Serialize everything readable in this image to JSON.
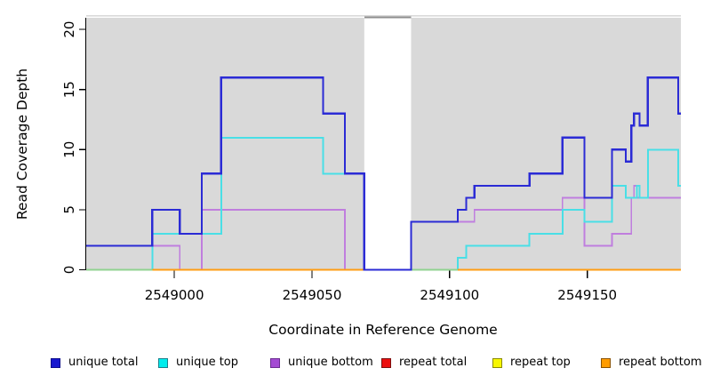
{
  "chart_data": {
    "type": "line",
    "style": "step",
    "title": "",
    "xlabel": "Coordinate in Reference Genome",
    "ylabel": "Read Coverage Depth",
    "xlim": [
      2548968,
      2549184
    ],
    "ylim": [
      0,
      20.9
    ],
    "x_ticks": [
      2549000,
      2549050,
      2549100,
      2549150
    ],
    "y_ticks": [
      0,
      5,
      10,
      15,
      20
    ],
    "grid": false,
    "plot_bg_color": "#d9d9d9",
    "mask_region": {
      "start": 2549069,
      "end": 2549086,
      "fill": "#ffffff",
      "top_border_color": "#8f8f8f"
    },
    "legend_position": "bottom",
    "series": [
      {
        "name": "unique total",
        "color": "#2b2bd5",
        "swatch_fill": "#1717cf",
        "swatch_border": "#0d0d8c",
        "steps": [
          [
            2548968,
            2
          ],
          [
            2548992,
            5
          ],
          [
            2549002,
            3
          ],
          [
            2549010,
            8
          ],
          [
            2549017,
            16
          ],
          [
            2549054,
            13
          ],
          [
            2549062,
            8
          ],
          [
            2549069,
            0
          ],
          [
            2549086,
            4
          ],
          [
            2549103,
            5
          ],
          [
            2549106,
            6
          ],
          [
            2549109,
            7
          ],
          [
            2549129,
            8
          ],
          [
            2549141,
            11
          ],
          [
            2549149,
            6
          ],
          [
            2549159,
            10
          ],
          [
            2549164,
            9
          ],
          [
            2549166,
            12
          ],
          [
            2549167,
            13
          ],
          [
            2549169,
            12
          ],
          [
            2549172,
            16
          ],
          [
            2549183,
            13
          ]
        ]
      },
      {
        "name": "unique top",
        "color": "#49dfe6",
        "swatch_fill": "#00eded",
        "swatch_border": "#19808c",
        "steps": [
          [
            2548968,
            0
          ],
          [
            2548992,
            3
          ],
          [
            2549017,
            11
          ],
          [
            2549054,
            8
          ],
          [
            2549069,
            0
          ],
          [
            2549103,
            1
          ],
          [
            2549106,
            2
          ],
          [
            2549129,
            3
          ],
          [
            2549141,
            5
          ],
          [
            2549149,
            4
          ],
          [
            2549159,
            7
          ],
          [
            2549164,
            6
          ],
          [
            2549168,
            7
          ],
          [
            2549169,
            6
          ],
          [
            2549172,
            10
          ],
          [
            2549183,
            7
          ]
        ]
      },
      {
        "name": "unique bottom",
        "color": "#c07ede",
        "swatch_fill": "#a44bd3",
        "swatch_border": "#6b2d91",
        "steps": [
          [
            2548968,
            2
          ],
          [
            2549002,
            0
          ],
          [
            2549010,
            5
          ],
          [
            2549062,
            0
          ],
          [
            2549086,
            4
          ],
          [
            2549109,
            5
          ],
          [
            2549141,
            6
          ],
          [
            2549149,
            2
          ],
          [
            2549159,
            3
          ],
          [
            2549166,
            6
          ],
          [
            2549167,
            7
          ],
          [
            2549168,
            6
          ]
        ]
      },
      {
        "name": "repeat total",
        "color": "#dd0000",
        "swatch_fill": "#ec0f0f",
        "swatch_border": "#7c1010",
        "steps": [
          [
            2548968,
            0
          ]
        ]
      },
      {
        "name": "repeat top",
        "color": "#efef00",
        "swatch_fill": "#f7f700",
        "swatch_border": "#8a8a00",
        "steps": [
          [
            2548968,
            0
          ]
        ]
      },
      {
        "name": "repeat bottom",
        "color": "#ff9d13",
        "swatch_fill": "#ff9c00",
        "swatch_border": "#8a5200",
        "steps": [
          [
            2548968,
            0
          ]
        ]
      }
    ],
    "baseline_overlays": [
      {
        "from": 2548968,
        "to": 2548992,
        "color": "#90d290"
      },
      {
        "from": 2549086,
        "to": 2549103,
        "color": "#90d290"
      }
    ]
  }
}
